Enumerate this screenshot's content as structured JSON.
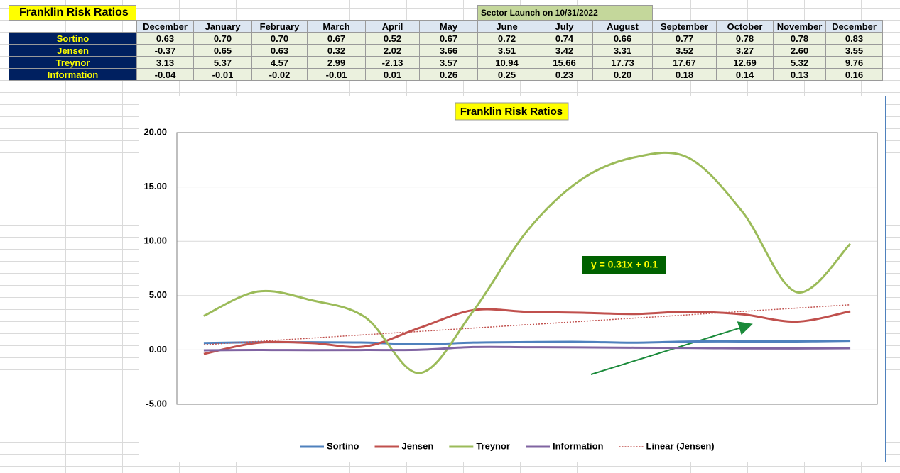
{
  "sheet": {
    "title": "Franklin Risk Ratios",
    "note": "Sector Launch on 10/31/2022",
    "table": {
      "columns": [
        "December",
        "January",
        "February",
        "March",
        "April",
        "May",
        "June",
        "July",
        "August",
        "September",
        "October",
        "November",
        "December"
      ],
      "rows": [
        {
          "label": "Sortino",
          "cells": [
            "0.63",
            "0.70",
            "0.70",
            "0.67",
            "0.52",
            "0.67",
            "0.72",
            "0.74",
            "0.66",
            "0.77",
            "0.78",
            "0.78",
            "0.83"
          ]
        },
        {
          "label": "Jensen",
          "cells": [
            "-0.37",
            "0.65",
            "0.63",
            "0.32",
            "2.02",
            "3.66",
            "3.51",
            "3.42",
            "3.31",
            "3.52",
            "3.27",
            "2.60",
            "3.55"
          ]
        },
        {
          "label": "Treynor",
          "cells": [
            "3.13",
            "5.37",
            "4.57",
            "2.99",
            "-2.13",
            "3.57",
            "10.94",
            "15.66",
            "17.73",
            "17.67",
            "12.69",
            "5.32",
            "9.76"
          ]
        },
        {
          "label": "Information",
          "cells": [
            "-0.04",
            "-0.01",
            "-0.02",
            "-0.01",
            "0.01",
            "0.26",
            "0.25",
            "0.23",
            "0.20",
            "0.18",
            "0.14",
            "0.13",
            "0.16"
          ]
        }
      ]
    }
  },
  "chart_data": {
    "type": "line",
    "title": "Franklin Risk Ratios",
    "series": [
      {
        "name": "Sortino",
        "color": "#4f81bd",
        "values": [
          0.63,
          0.7,
          0.7,
          0.67,
          0.52,
          0.67,
          0.72,
          0.74,
          0.66,
          0.77,
          0.78,
          0.78,
          0.83
        ]
      },
      {
        "name": "Jensen",
        "color": "#c0504d",
        "values": [
          -0.37,
          0.65,
          0.63,
          0.32,
          2.02,
          3.66,
          3.51,
          3.42,
          3.31,
          3.52,
          3.27,
          2.6,
          3.55
        ]
      },
      {
        "name": "Treynor",
        "color": "#9bbb59",
        "values": [
          3.13,
          5.37,
          4.57,
          2.99,
          -2.13,
          3.57,
          10.94,
          15.66,
          17.73,
          17.67,
          12.69,
          5.32,
          9.76
        ]
      },
      {
        "name": "Information",
        "color": "#8064a2",
        "values": [
          -0.04,
          -0.01,
          -0.02,
          -0.01,
          0.01,
          0.26,
          0.25,
          0.23,
          0.2,
          0.18,
          0.14,
          0.13,
          0.16
        ]
      }
    ],
    "trendline": {
      "name": "Linear (Jensen)",
      "series": 1,
      "color": "#c0504d",
      "equation": "y = 0.31x + 0.1"
    },
    "ylim": [
      -5,
      20
    ],
    "yticks": [
      {
        "value": -5,
        "label": "-5.00"
      },
      {
        "value": 0,
        "label": "0.00"
      },
      {
        "value": 5,
        "label": "5.00"
      },
      {
        "value": 10,
        "label": "10.00"
      },
      {
        "value": 15,
        "label": "15.00"
      },
      {
        "value": 20,
        "label": "20.00"
      }
    ],
    "grid": true,
    "legend": "bottom"
  }
}
